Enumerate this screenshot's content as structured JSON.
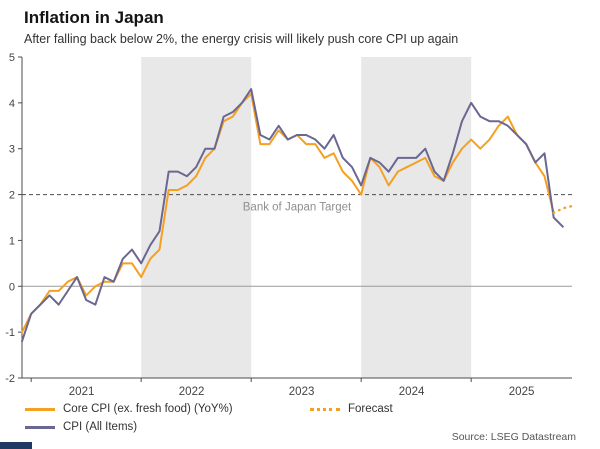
{
  "header": {
    "title": "Inflation in Japan",
    "subtitle": "After falling back below 2%, the energy crisis will likely push core CPI up again"
  },
  "source": "Source: LSEG Datastream",
  "chart_data": {
    "type": "line",
    "x_unit": "month",
    "start": "2020-12",
    "end": "2025-12",
    "total_months": 60,
    "ylim": [
      -2,
      5
    ],
    "yticks": [
      5,
      4,
      3,
      2,
      1,
      0,
      -1,
      -2
    ],
    "x_tick_labels": [
      "2021",
      "2022",
      "2023",
      "2024",
      "2025"
    ],
    "x_tick_centers": [
      6.5,
      18.5,
      30.5,
      42.5,
      54.5
    ],
    "x_year_ticks": [
      1,
      13,
      25,
      37,
      49
    ],
    "bands": [
      {
        "from_index": 13,
        "to_index": 25
      },
      {
        "from_index": 37,
        "to_index": 49
      }
    ],
    "target_line": {
      "value": 2,
      "label": "Bank of Japan Target"
    },
    "colors": {
      "band": "#e8e8e8",
      "target": "#4d4d4d",
      "target_label": "#8f8f8f",
      "zero_line": "#9a9a9a",
      "axis": "#4d4d4d",
      "tick_text": "#444444"
    },
    "series": [
      {
        "name": "Core CPI (ex. fresh food) (YoY%)",
        "color": "#F5A021",
        "style": "solid",
        "width": 2,
        "start_index": 0,
        "values": [
          -1.0,
          -0.6,
          -0.4,
          -0.1,
          -0.1,
          0.1,
          0.2,
          -0.2,
          0.0,
          0.1,
          0.1,
          0.5,
          0.5,
          0.2,
          0.6,
          0.8,
          2.1,
          2.1,
          2.2,
          2.4,
          2.8,
          3.0,
          3.6,
          3.7,
          4.0,
          4.2,
          3.1,
          3.1,
          3.4,
          3.2,
          3.3,
          3.1,
          3.1,
          2.8,
          2.9,
          2.5,
          2.3,
          2.0,
          2.8,
          2.6,
          2.2,
          2.5,
          2.6,
          2.7,
          2.8,
          2.4,
          2.3,
          2.7,
          3.0,
          3.2,
          3.0,
          3.2,
          3.5,
          3.7,
          3.3,
          3.1,
          2.7,
          2.4,
          1.6
        ]
      },
      {
        "name": "CPI (All Items)",
        "color": "#6A6791",
        "style": "solid",
        "width": 2,
        "start_index": 0,
        "values": [
          -1.2,
          -0.6,
          -0.4,
          -0.2,
          -0.4,
          -0.1,
          0.2,
          -0.3,
          -0.4,
          0.2,
          0.1,
          0.6,
          0.8,
          0.5,
          0.9,
          1.2,
          2.5,
          2.5,
          2.4,
          2.6,
          3.0,
          3.0,
          3.7,
          3.8,
          4.0,
          4.3,
          3.3,
          3.2,
          3.5,
          3.2,
          3.3,
          3.3,
          3.2,
          3.0,
          3.3,
          2.8,
          2.6,
          2.2,
          2.8,
          2.7,
          2.5,
          2.8,
          2.8,
          2.8,
          3.0,
          2.5,
          2.3,
          2.9,
          3.6,
          4.0,
          3.7,
          3.6,
          3.6,
          3.5,
          3.3,
          3.1,
          2.7,
          2.9,
          1.5,
          1.3
        ]
      },
      {
        "name": "Forecast",
        "color": "#F5A021",
        "style": "dotted",
        "width": 2.5,
        "start_index": 58,
        "values": [
          1.6,
          1.7,
          1.75
        ]
      }
    ]
  }
}
